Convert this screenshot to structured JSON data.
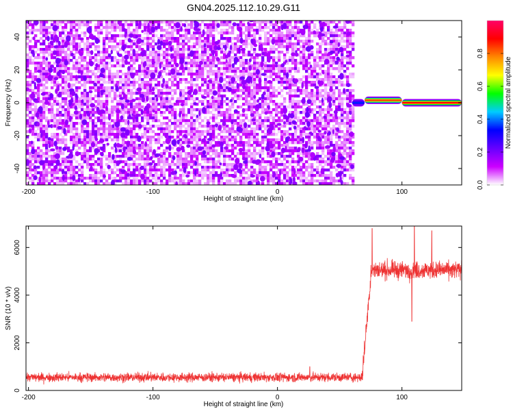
{
  "figure_title": "GN04.2025.112.10.29.G11",
  "chart_data": [
    {
      "type": "heatmap",
      "title": "GN04.2025.112.10.29.G11",
      "xlabel": "Height of straight line (km)",
      "ylabel": "Frequency (Hz)",
      "xlim": [
        -202,
        148
      ],
      "ylim": [
        -50,
        50
      ],
      "xticks": [
        -200,
        -100,
        0,
        100
      ],
      "yticks": [
        -40,
        -20,
        0,
        20,
        40
      ],
      "grid": false,
      "colorbar": {
        "label": "Normalized spectral amplitude",
        "range": [
          0,
          1
        ],
        "ticks": [
          0.0,
          0.2,
          0.4,
          0.6,
          0.8
        ],
        "colormap": [
          "#ffffff",
          "#cc00ff",
          "#6600ff",
          "#0000ff",
          "#00ccff",
          "#00ff00",
          "#ffff00",
          "#ff8800",
          "#ff0000",
          "#ff0066"
        ]
      },
      "noise_region": {
        "x_range": [
          -202,
          60
        ],
        "frequency_range": [
          -50,
          50
        ],
        "amplitude": "low (0.0–0.2), random"
      },
      "signal_segments": [
        {
          "x_start": 60,
          "x_end": 70,
          "frequency": 0,
          "amplitude": 0.35
        },
        {
          "x_start": 70,
          "x_end": 100,
          "frequency": 1.5,
          "amplitude": 0.85
        },
        {
          "x_start": 100,
          "x_end": 148,
          "frequency": 0,
          "amplitude": 0.9
        }
      ]
    },
    {
      "type": "line",
      "xlabel": "Height of straight line (km)",
      "ylabel": "SNR (10 * v/v)",
      "xlim": [
        -202,
        148
      ],
      "ylim": [
        0,
        6900
      ],
      "xticks": [
        -200,
        -100,
        0,
        100
      ],
      "yticks": [
        0,
        2000,
        4000,
        6000
      ],
      "grid": false,
      "color": "#ee3333",
      "series": [
        {
          "segments": [
            {
              "x_start": -202,
              "x_end": 68,
              "mean": 550,
              "noise": 180
            },
            {
              "x_start": 68,
              "x_end": 75,
              "mean_start": 550,
              "mean_end": 4800,
              "noise": 400
            },
            {
              "x_start": 75,
              "x_end": 148,
              "mean": 5050,
              "noise": 350
            }
          ],
          "spikes": [
            {
              "x": 26,
              "y": 1000
            },
            {
              "x": 76,
              "y": 6800
            },
            {
              "x": 108,
              "y": 2900
            },
            {
              "x": 110,
              "y": 6900
            },
            {
              "x": 124,
              "y": 6700
            }
          ]
        }
      ]
    }
  ]
}
